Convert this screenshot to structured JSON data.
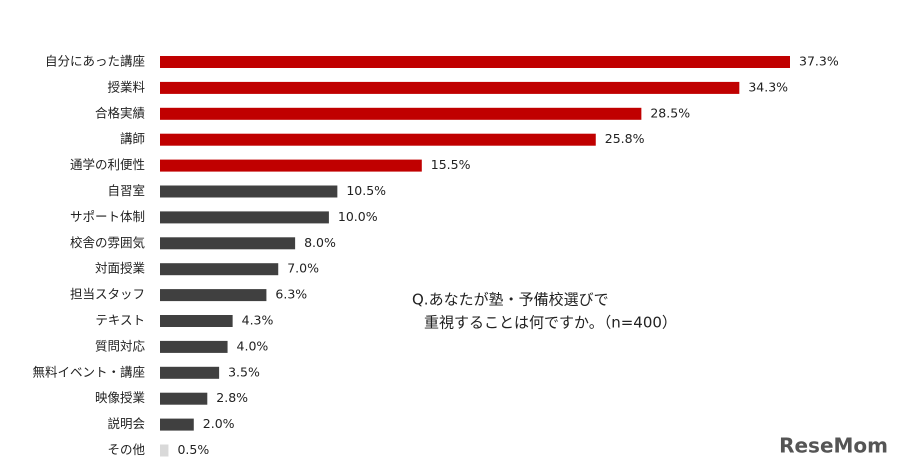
{
  "chart_data": {
    "type": "bar",
    "orientation": "horizontal",
    "categories": [
      "自分にあった講座",
      "授業料",
      "合格実績",
      "講師",
      "通学の利便性",
      "自習室",
      "サポート体制",
      "校舎の雰囲気",
      "対面授業",
      "担当スタッフ",
      "テキスト",
      "質問対応",
      "無料イベント・講座",
      "映像授業",
      "説明会",
      "その他"
    ],
    "values": [
      37.3,
      34.3,
      28.5,
      25.8,
      15.5,
      10.5,
      10.0,
      8.0,
      7.0,
      6.3,
      4.3,
      4.0,
      3.5,
      2.8,
      2.0,
      0.5
    ],
    "value_labels": [
      "37.3%",
      "34.3%",
      "28.5%",
      "25.8%",
      "15.5%",
      "10.5%",
      "10.0%",
      "8.0%",
      "7.0%",
      "6.3%",
      "4.3%",
      "4.0%",
      "3.5%",
      "2.8%",
      "2.0%",
      "0.5%"
    ],
    "colors": [
      "#c00000",
      "#c00000",
      "#c00000",
      "#c00000",
      "#c00000",
      "#404040",
      "#404040",
      "#404040",
      "#404040",
      "#404040",
      "#404040",
      "#404040",
      "#404040",
      "#404040",
      "#404040",
      "#d9d9d9"
    ],
    "annotation": [
      "Q.あなたが塾・予備校選びで",
      "重視することは何ですか。（n=400）"
    ],
    "logo": "ReseMom"
  }
}
